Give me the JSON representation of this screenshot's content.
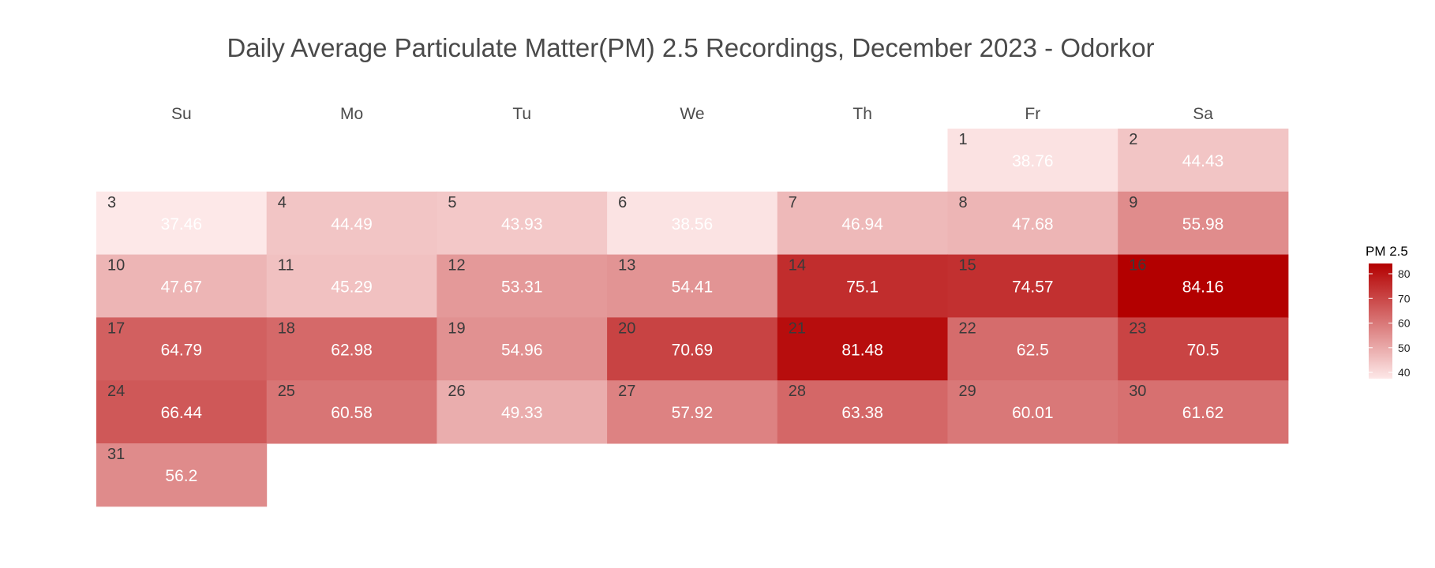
{
  "chart_data": {
    "type": "heatmap",
    "title": "Daily Average Particulate Matter(PM) 2.5 Recordings, December 2023 - Odorkor",
    "weekdays": [
      "Su",
      "Mo",
      "Tu",
      "We",
      "Th",
      "Fr",
      "Sa"
    ],
    "first_weekday_index": 5,
    "days": [
      1,
      2,
      3,
      4,
      5,
      6,
      7,
      8,
      9,
      10,
      11,
      12,
      13,
      14,
      15,
      16,
      17,
      18,
      19,
      20,
      21,
      22,
      23,
      24,
      25,
      26,
      27,
      28,
      29,
      30,
      31
    ],
    "values": [
      38.76,
      44.43,
      37.46,
      44.49,
      43.93,
      38.56,
      46.94,
      47.68,
      55.98,
      47.67,
      45.29,
      53.31,
      54.41,
      75.1,
      74.57,
      84.16,
      64.79,
      62.98,
      54.96,
      70.69,
      81.48,
      62.5,
      70.5,
      66.44,
      60.58,
      49.33,
      57.92,
      63.38,
      60.01,
      61.62,
      56.2
    ],
    "legend": {
      "title": "PM 2.5",
      "ticks": [
        40,
        50,
        60,
        70,
        80
      ],
      "range": [
        37.46,
        84.16
      ],
      "low_color": "#fde8e8",
      "high_color": "#b30000"
    }
  }
}
